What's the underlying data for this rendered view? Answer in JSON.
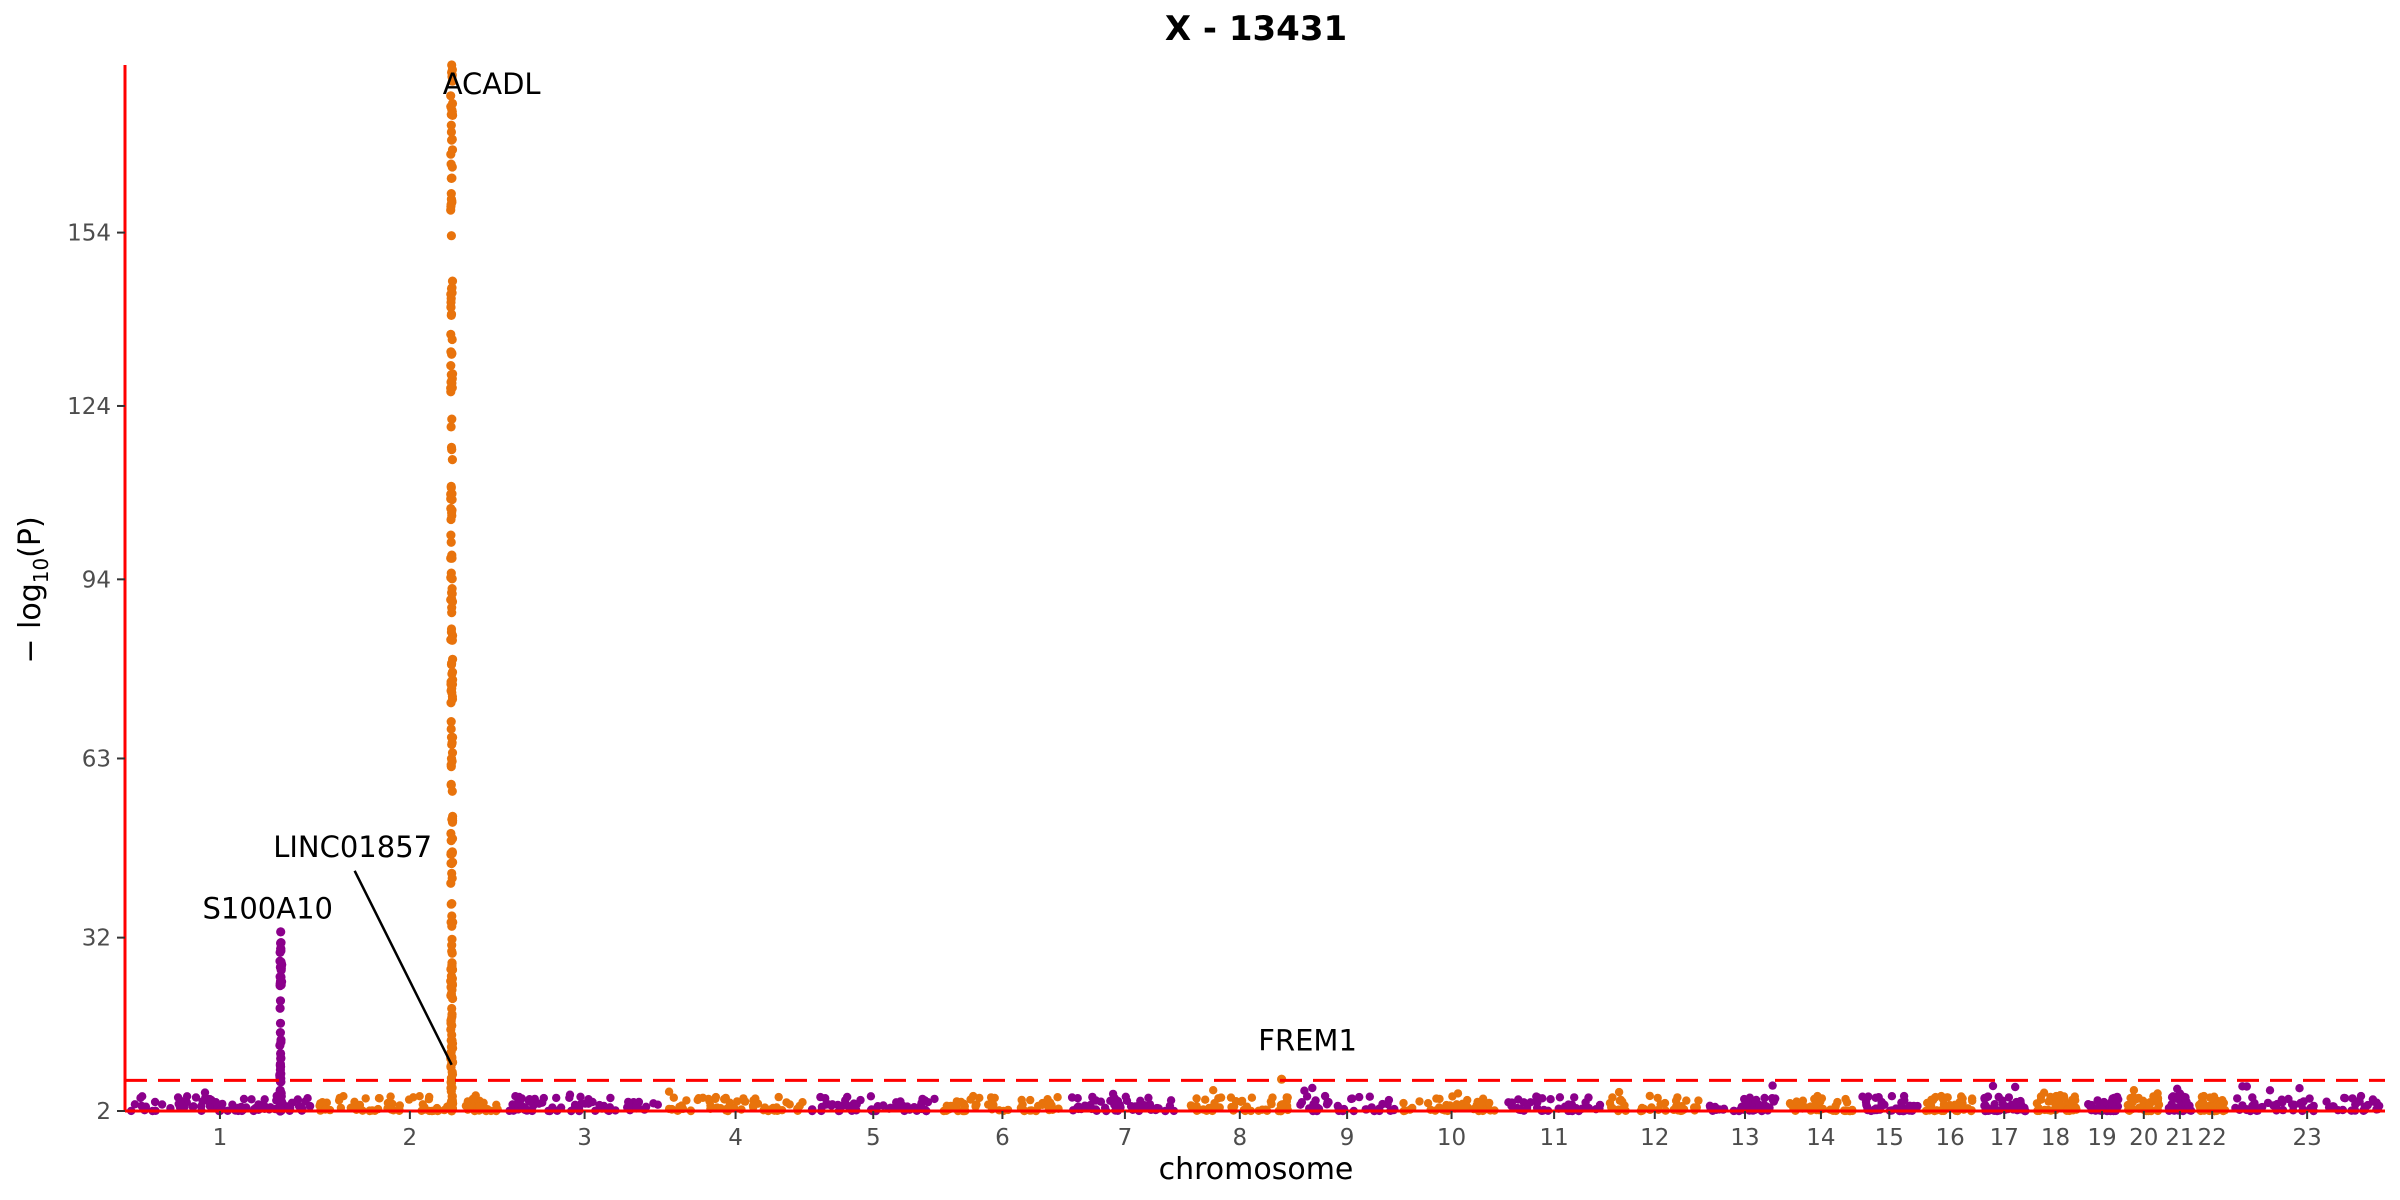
{
  "chart_data": {
    "type": "scatter",
    "subtype": "manhattan",
    "title": "X - 13431",
    "xlabel": "chromosome",
    "ylabel_prefix": "− log",
    "ylabel_sub": "10",
    "ylabel_suffix": "(P)",
    "ylim": [
      2,
      183
    ],
    "yticks": [
      2,
      32,
      63,
      94,
      124,
      154
    ],
    "significance_line": 7.3,
    "grid": false,
    "colors": {
      "odd": "#8b008b",
      "even": "#e8730c",
      "axis": "#ff0000",
      "threshold": "#ff0000",
      "tick_text": "#4d4d4d"
    },
    "chromosomes": [
      {
        "label": "1",
        "start": 0.0,
        "end": 1.0
      },
      {
        "label": "2",
        "start": 1.0,
        "end": 2.0
      },
      {
        "label": "3",
        "start": 2.0,
        "end": 2.84
      },
      {
        "label": "4",
        "start": 2.84,
        "end": 3.59
      },
      {
        "label": "5",
        "start": 3.59,
        "end": 4.29
      },
      {
        "label": "6",
        "start": 4.29,
        "end": 4.95
      },
      {
        "label": "7",
        "start": 4.95,
        "end": 5.58
      },
      {
        "label": "8",
        "start": 5.58,
        "end": 6.16
      },
      {
        "label": "9",
        "start": 6.16,
        "end": 6.71
      },
      {
        "label": "10",
        "start": 6.71,
        "end": 7.26
      },
      {
        "label": "11",
        "start": 7.26,
        "end": 7.79
      },
      {
        "label": "12",
        "start": 7.79,
        "end": 8.32
      },
      {
        "label": "13",
        "start": 8.32,
        "end": 8.74
      },
      {
        "label": "14",
        "start": 8.74,
        "end": 9.12
      },
      {
        "label": "15",
        "start": 9.12,
        "end": 9.46
      },
      {
        "label": "16",
        "start": 9.46,
        "end": 9.76
      },
      {
        "label": "17",
        "start": 9.76,
        "end": 10.03
      },
      {
        "label": "18",
        "start": 10.03,
        "end": 10.3
      },
      {
        "label": "19",
        "start": 10.3,
        "end": 10.52
      },
      {
        "label": "20",
        "start": 10.52,
        "end": 10.74
      },
      {
        "label": "21",
        "start": 10.74,
        "end": 10.9
      },
      {
        "label": "22",
        "start": 10.9,
        "end": 11.08
      },
      {
        "label": "23",
        "start": 11.08,
        "end": 11.9
      }
    ],
    "peaks": [
      {
        "chrom": "1",
        "pos": 0.82,
        "min": 2,
        "max": 33,
        "count": 60
      },
      {
        "chrom": "2",
        "pos": 1.72,
        "min": 2,
        "max": 183,
        "count": 230
      },
      {
        "chrom": "8",
        "pos": 6.09,
        "min": 2,
        "max": 7.5,
        "count": 4
      }
    ],
    "annotations": [
      {
        "text": "ACADL",
        "x": 1.72,
        "y": 178
      },
      {
        "text": "S100A10",
        "x": 0.82,
        "y": 35
      },
      {
        "text": "LINC01857",
        "x": 1.72,
        "y": 10
      },
      {
        "text": "FREM1",
        "x": 6.09,
        "y": 8
      }
    ]
  }
}
